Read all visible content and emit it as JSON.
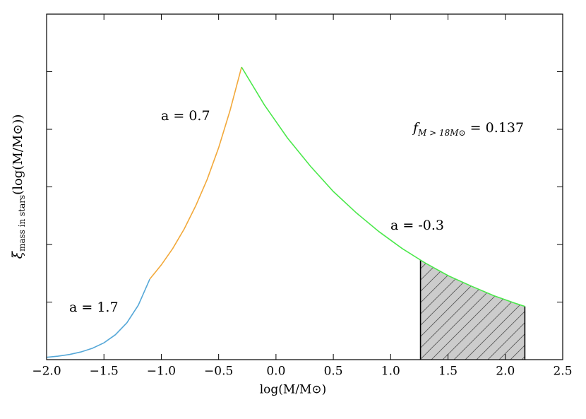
{
  "chart_data": {
    "type": "line",
    "x_label": "log(M/M⊙)",
    "y_label": {
      "symbol": "ξ",
      "subscript": "mass in stars",
      "rest": "(log(M/M⊙))"
    },
    "xlim": [
      -2.0,
      2.5
    ],
    "xticks": [
      {
        "value": -2.0,
        "label": "−2.0"
      },
      {
        "value": -1.5,
        "label": "−1.5"
      },
      {
        "value": -1.0,
        "label": "−1.0"
      },
      {
        "value": -0.5,
        "label": "−0.5"
      },
      {
        "value": 0.0,
        "label": "0.0"
      },
      {
        "value": 0.5,
        "label": "0.5"
      },
      {
        "value": 1.0,
        "label": "1.0"
      },
      {
        "value": 1.5,
        "label": "1.5"
      },
      {
        "value": 2.0,
        "label": "2.0"
      },
      {
        "value": 2.5,
        "label": "2.5"
      }
    ],
    "ylim": [
      0,
      6
    ],
    "yticks": [
      1,
      2,
      3,
      4,
      5
    ],
    "series": [
      {
        "name": "a = 1.7",
        "color": "#56a8d8",
        "x": [
          -2.0,
          -1.9,
          -1.8,
          -1.7,
          -1.6,
          -1.5,
          -1.4,
          -1.3,
          -1.2,
          -1.1
        ],
        "values": [
          0.041,
          0.061,
          0.09,
          0.134,
          0.198,
          0.292,
          0.433,
          0.64,
          0.947,
          1.4
        ]
      },
      {
        "name": "a = 0.7",
        "color": "#f2a93b",
        "x": [
          -1.1,
          -1.0,
          -0.9,
          -0.8,
          -0.7,
          -0.6,
          -0.5,
          -0.4,
          -0.3
        ],
        "values": [
          1.4,
          1.645,
          1.93,
          2.27,
          2.67,
          3.13,
          3.68,
          4.33,
          5.08
        ]
      },
      {
        "name": "a = -0.3",
        "color": "#4be84b",
        "x": [
          -0.3,
          -0.1,
          0.1,
          0.3,
          0.5,
          0.7,
          0.9,
          1.1,
          1.26,
          1.3,
          1.5,
          1.7,
          1.9,
          2.1,
          2.17
        ],
        "values": [
          5.08,
          4.42,
          3.85,
          3.36,
          2.92,
          2.55,
          2.22,
          1.93,
          1.73,
          1.68,
          1.46,
          1.28,
          1.11,
          0.97,
          0.925
        ]
      }
    ],
    "shade_range": [
      1.26,
      2.17
    ],
    "shade_color": "#cccccc",
    "f_label": {
      "symbol": "f",
      "subscript": "M > 18M⊙",
      "rest": " = 0.137"
    }
  }
}
